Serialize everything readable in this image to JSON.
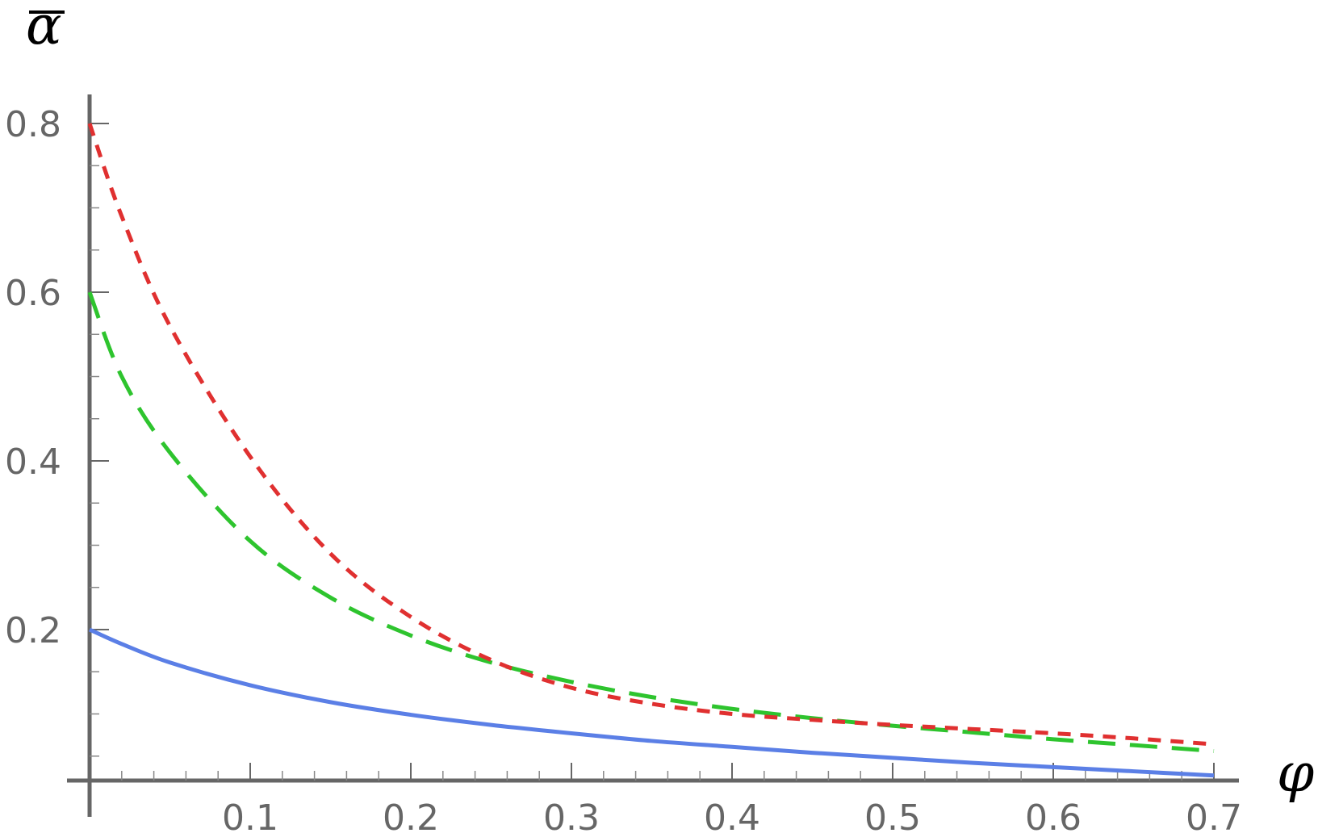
{
  "chart_data": {
    "type": "line",
    "title": "",
    "xlabel": "φ",
    "ylabel": "α",
    "ylabel_overbar": true,
    "xlim": [
      0,
      0.7
    ],
    "ylim": [
      0.0,
      0.82
    ],
    "x_ticks": [
      {
        "value": 0.1,
        "label": "0.1"
      },
      {
        "value": 0.2,
        "label": "0.2"
      },
      {
        "value": 0.3,
        "label": "0.3"
      },
      {
        "value": 0.4,
        "label": "0.4"
      },
      {
        "value": 0.5,
        "label": "0.5"
      },
      {
        "value": 0.6,
        "label": "0.6"
      },
      {
        "value": 0.7,
        "label": "0.7"
      }
    ],
    "y_ticks": [
      {
        "value": 0.2,
        "label": "0.2"
      },
      {
        "value": 0.4,
        "label": "0.4"
      },
      {
        "value": 0.6,
        "label": "0.6"
      },
      {
        "value": 0.8,
        "label": "0.8"
      }
    ],
    "grid": false,
    "legend": "none",
    "series": [
      {
        "color": "#5b7fe6",
        "style": "solid",
        "x": [
          0,
          0.02,
          0.05,
          0.1,
          0.15,
          0.2,
          0.25,
          0.3,
          0.35,
          0.4,
          0.45,
          0.5,
          0.55,
          0.6,
          0.65,
          0.7
        ],
        "y": [
          0.2,
          0.183,
          0.161,
          0.134,
          0.114,
          0.099,
          0.087,
          0.077,
          0.068,
          0.061,
          0.054,
          0.048,
          0.042,
          0.037,
          0.032,
          0.027
        ]
      },
      {
        "color": "#2ec42e",
        "style": "long-dash",
        "x": [
          0,
          0.02,
          0.05,
          0.1,
          0.15,
          0.2,
          0.25,
          0.3,
          0.35,
          0.4,
          0.45,
          0.5,
          0.55,
          0.6,
          0.65,
          0.7
        ],
        "y": [
          0.6,
          0.5,
          0.41,
          0.305,
          0.238,
          0.193,
          0.161,
          0.138,
          0.12,
          0.106,
          0.095,
          0.086,
          0.078,
          0.07,
          0.063,
          0.056
        ]
      },
      {
        "color": "#e03030",
        "style": "short-dash",
        "x": [
          0,
          0.02,
          0.05,
          0.1,
          0.15,
          0.2,
          0.25,
          0.3,
          0.35,
          0.4,
          0.45,
          0.5,
          0.55,
          0.6,
          0.65,
          0.7
        ],
        "y": [
          0.8,
          0.69,
          0.56,
          0.405,
          0.29,
          0.215,
          0.164,
          0.131,
          0.112,
          0.1,
          0.093,
          0.087,
          0.082,
          0.077,
          0.071,
          0.064
        ]
      }
    ]
  }
}
